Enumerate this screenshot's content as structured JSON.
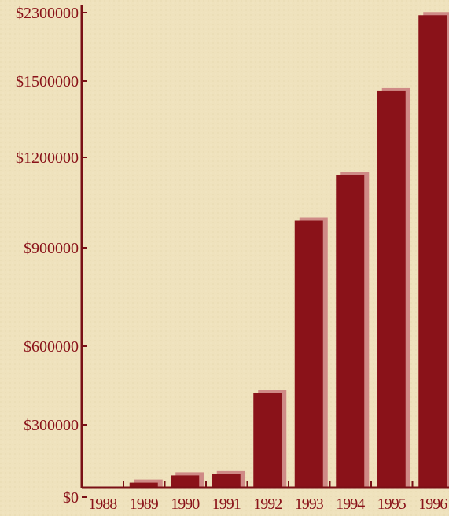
{
  "chart_data": {
    "type": "bar",
    "title": "",
    "xlabel": "",
    "ylabel": "",
    "categories": [
      "1988",
      "1989",
      "1990",
      "1991",
      "1992",
      "1993",
      "1994",
      "1995",
      "1996"
    ],
    "values": [
      0,
      60000,
      90000,
      95000,
      420000,
      990000,
      1140000,
      1460000,
      2270000
    ],
    "y_ticks": [
      {
        "value": 0,
        "label": "$0"
      },
      {
        "value": 300000,
        "label": "$300000"
      },
      {
        "value": 600000,
        "label": "$600000"
      },
      {
        "value": 900000,
        "label": "$900000"
      },
      {
        "value": 1200000,
        "label": "$1200000"
      },
      {
        "value": 1500000,
        "label": "$1500000"
      },
      {
        "value": 2300000,
        "label": "$2300000"
      }
    ],
    "grid": false,
    "legend": "none",
    "colors": {
      "bar": "#8a1219",
      "bar_shadow": "#cf8a86",
      "axis": "#7a1016",
      "background": "#efe2bd"
    }
  }
}
